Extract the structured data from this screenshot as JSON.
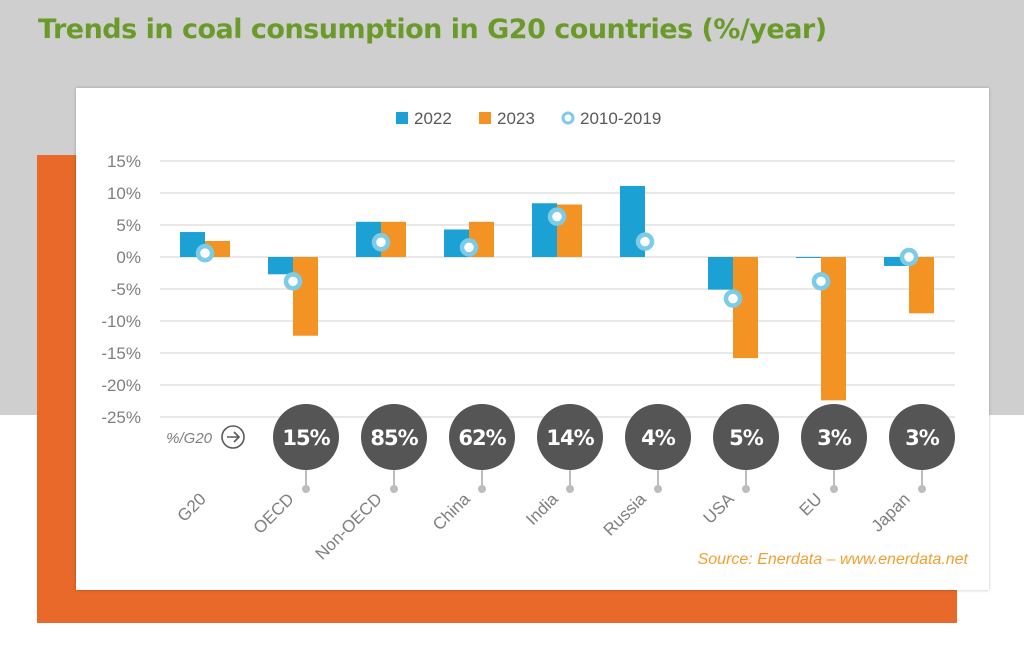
{
  "title": "Trends in coal consumption in G20 countries (%/year)",
  "source": "Source: Enerdata – www.enerdata.net",
  "share_label": "%/G20",
  "colors": {
    "2022": "#1ba1d3",
    "2023": "#f29324",
    "2010-2019": "#7ccbe8",
    "title": "#6a9a2a",
    "band": "#e8692a",
    "bubble": "#555555"
  },
  "chart_data": {
    "type": "bar",
    "title": "Trends in coal consumption in G20 countries (%/year)",
    "categories": [
      "G20",
      "OECD",
      "Non-OECD",
      "China",
      "India",
      "Russia",
      "USA",
      "EU",
      "Japan"
    ],
    "series": [
      {
        "name": "2022",
        "type": "bar",
        "values": [
          3.9,
          -2.7,
          5.5,
          4.3,
          8.4,
          11.1,
          -5.1,
          -0.1,
          -1.4
        ]
      },
      {
        "name": "2023",
        "type": "bar",
        "values": [
          2.5,
          -12.3,
          5.5,
          5.5,
          8.2,
          null,
          -15.8,
          -22.4,
          -8.8
        ]
      },
      {
        "name": "2010-2019",
        "type": "marker",
        "values": [
          0.6,
          -3.8,
          2.3,
          1.5,
          6.3,
          2.4,
          -6.5,
          -3.8,
          0.0
        ]
      }
    ],
    "share_of_g20": [
      null,
      "15%",
      "85%",
      "62%",
      "14%",
      "4%",
      "5%",
      "3%",
      "3%"
    ],
    "yticks": [
      "15%",
      "10%",
      "5%",
      "0%",
      "-5%",
      "-10%",
      "-15%",
      "-20%",
      "-25%"
    ],
    "ylim": [
      -25,
      15
    ],
    "grid": true,
    "legend": "top-center"
  }
}
